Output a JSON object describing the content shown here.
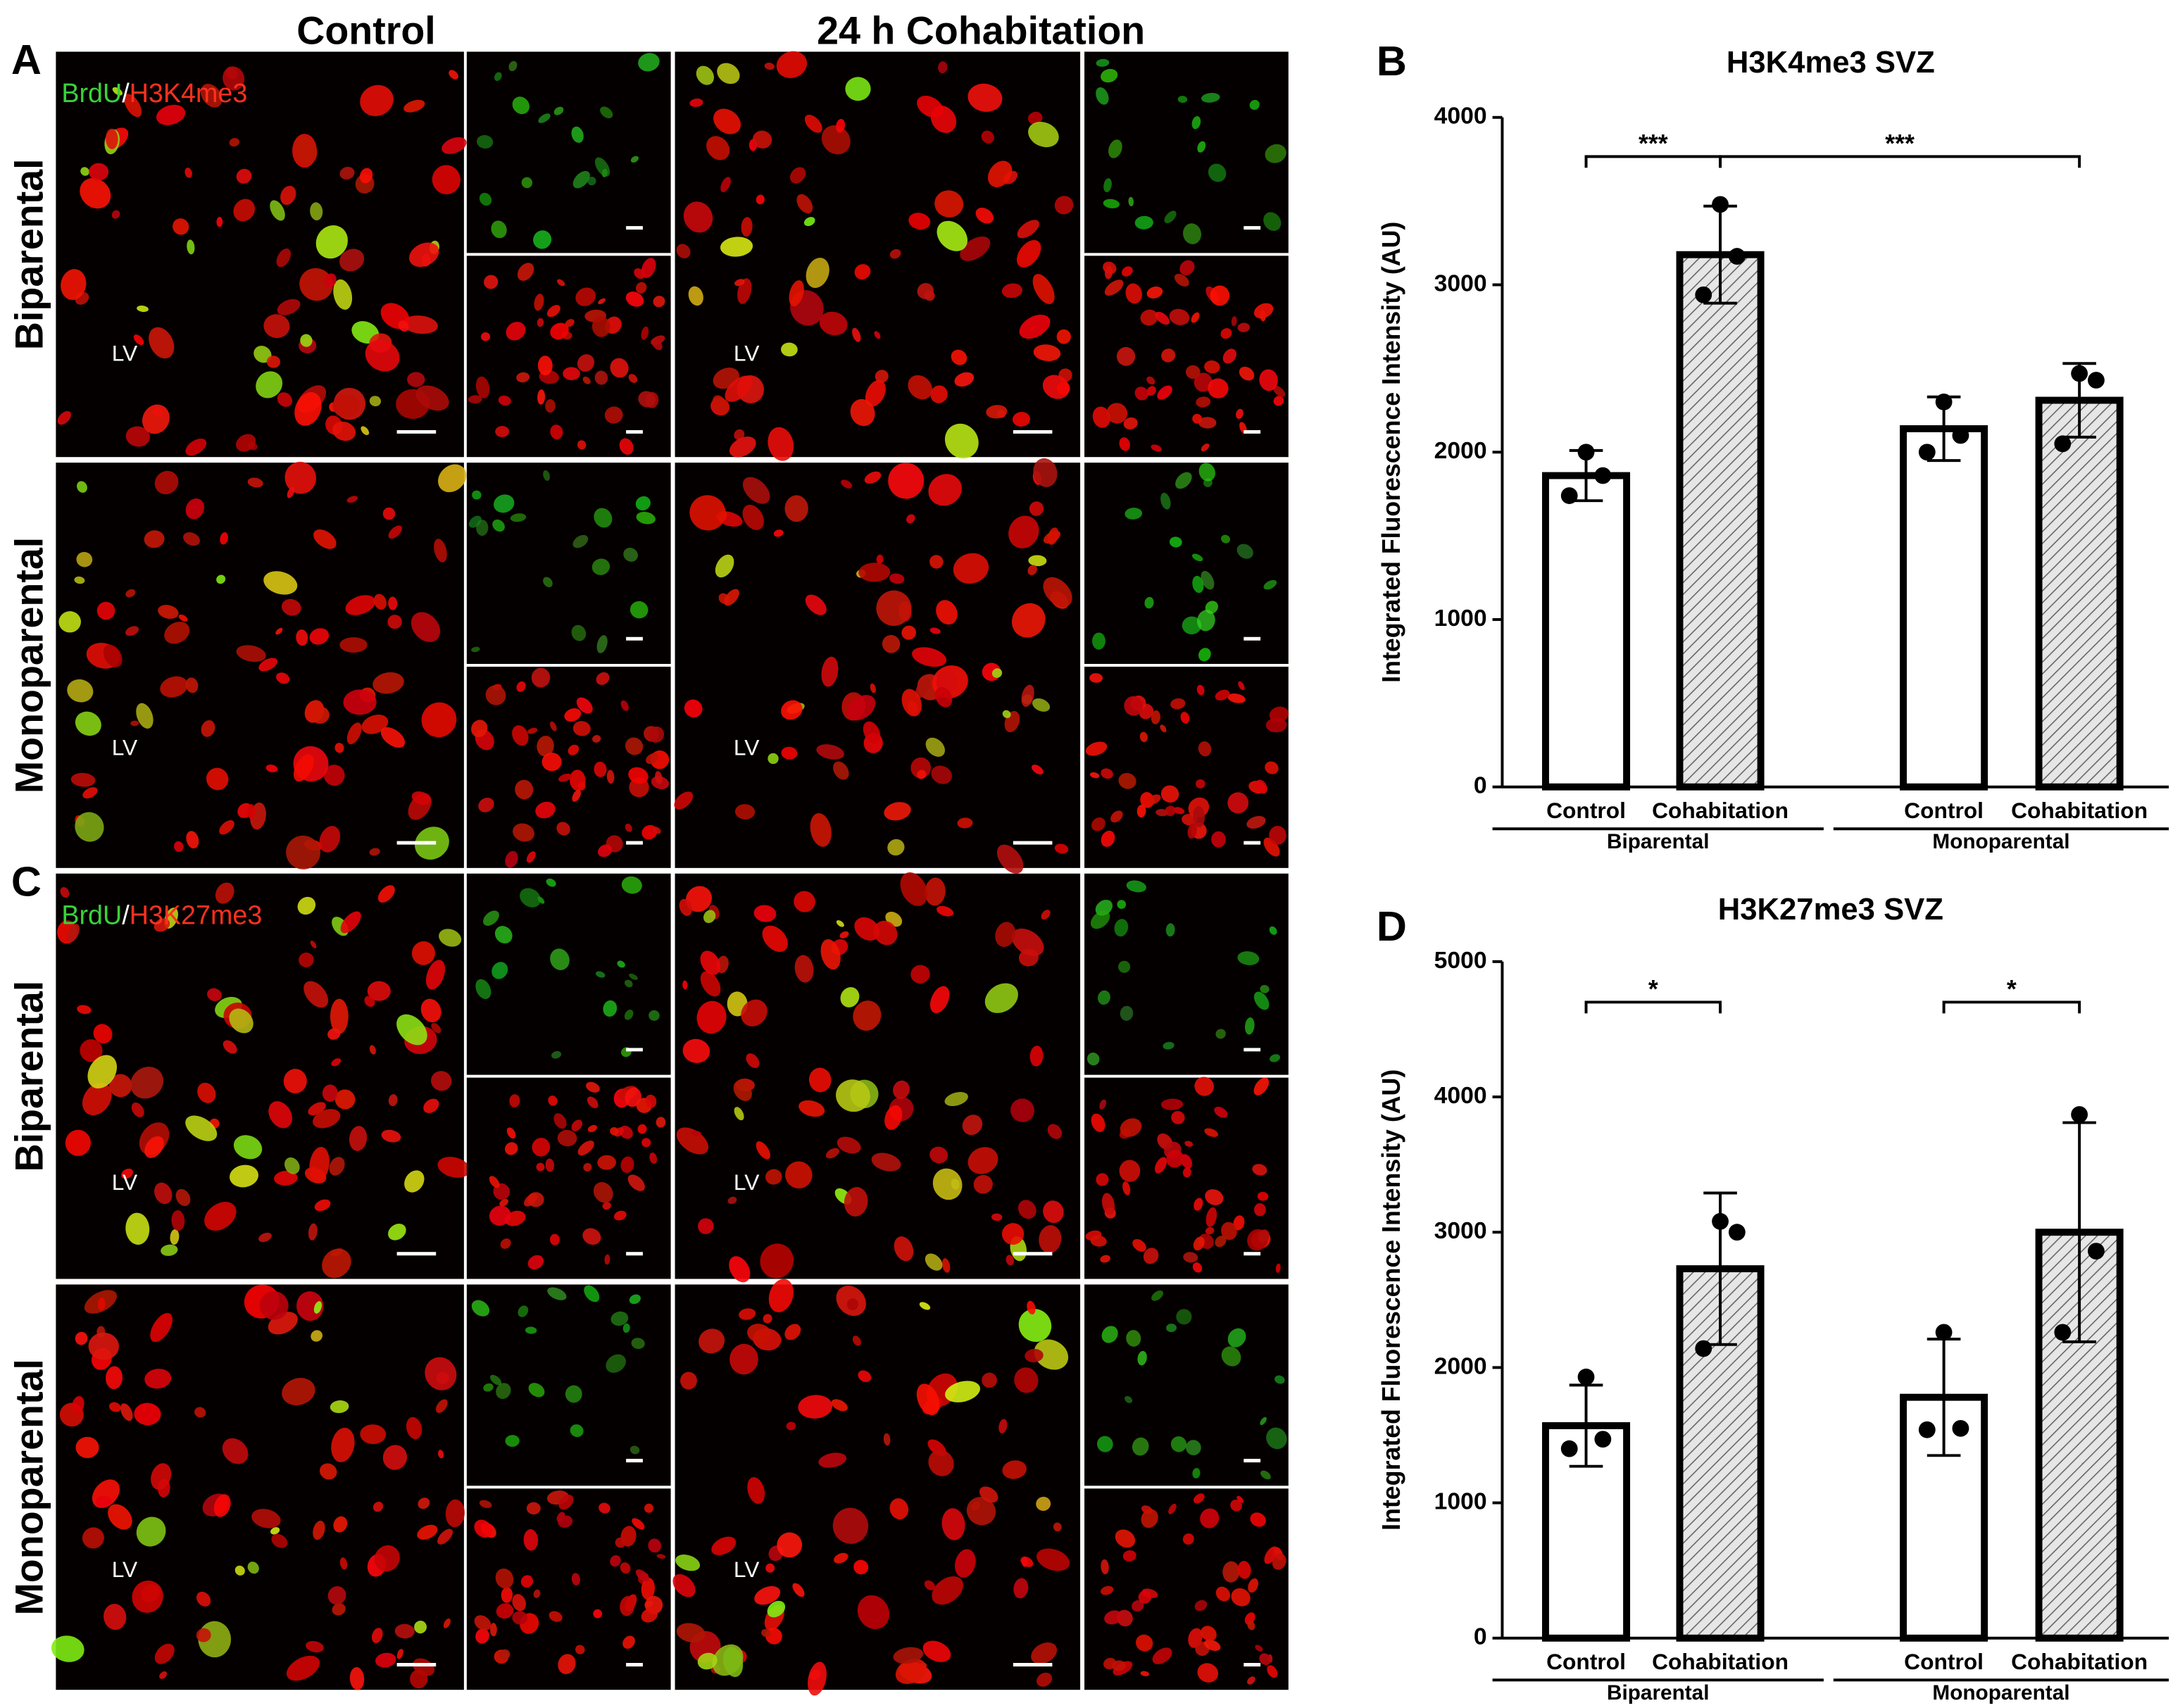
{
  "figure": {
    "columns": [
      "Control",
      "24 h Cohabitation"
    ],
    "rows": [
      "Biparental",
      "Monoparental",
      "Biparental",
      "Monoparental"
    ],
    "panels": [
      {
        "letter": "A",
        "stain": [
          "BrdU",
          "/",
          "H3K4me3"
        ]
      },
      {
        "letter": "C",
        "stain": [
          "BrdU",
          "/",
          "H3K27me3"
        ]
      }
    ],
    "region_label": "LV"
  },
  "chart_data": [
    {
      "type": "bar",
      "panel": "B",
      "title": "H3K4me3 SVZ",
      "y_label": "Integrated Fluorescence Intensity (AU)",
      "categories": [
        "Control",
        "Cohabitation",
        "Control",
        "Cohabitation"
      ],
      "groups": [
        "Biparental",
        "Monoparental"
      ],
      "values": [
        1860,
        3180,
        2140,
        2310
      ],
      "errors": [
        150,
        290,
        190,
        220
      ],
      "points": [
        [
          2000,
          1860,
          1740
        ],
        [
          3480,
          3170,
          2940
        ],
        [
          2300,
          2100,
          2000
        ],
        [
          2470,
          2430,
          2050
        ]
      ],
      "hatch": [
        false,
        true,
        false,
        true
      ],
      "annotations": [
        {
          "text": "***",
          "from": 0,
          "to": 1
        },
        {
          "text": "***",
          "from": 1,
          "to": 3
        }
      ],
      "ylim": [
        0,
        4000
      ],
      "yticks": [
        0,
        1000,
        2000,
        3000,
        4000
      ]
    },
    {
      "type": "bar",
      "panel": "D",
      "title": "H3K27me3 SVZ",
      "y_label": "Integrated Fluorescence Intensity (AU)",
      "categories": [
        "Control",
        "Cohabitation",
        "Control",
        "Cohabitation"
      ],
      "groups": [
        "Biparental",
        "Monoparental"
      ],
      "values": [
        1570,
        2730,
        1780,
        3000
      ],
      "errors": [
        300,
        560,
        430,
        810
      ],
      "points": [
        [
          1930,
          1470,
          1400
        ],
        [
          3080,
          3000,
          2140
        ],
        [
          2260,
          1550,
          1540
        ],
        [
          3870,
          2860,
          2260
        ]
      ],
      "hatch": [
        false,
        true,
        false,
        true
      ],
      "annotations": [
        {
          "text": "*",
          "from": 0,
          "to": 1
        },
        {
          "text": "*",
          "from": 2,
          "to": 3
        }
      ],
      "ylim": [
        0,
        5000
      ],
      "yticks": [
        0,
        1000,
        2000,
        3000,
        4000,
        5000
      ]
    }
  ]
}
